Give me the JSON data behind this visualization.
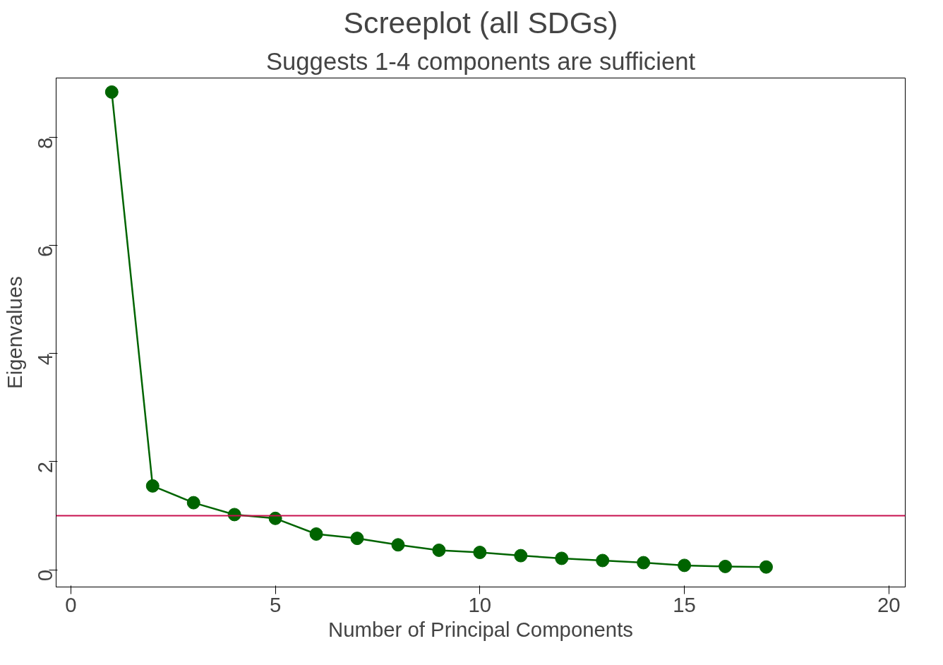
{
  "chart_data": {
    "type": "line",
    "title": "Screeplot (all SDGs)",
    "subtitle": "Suggests 1-4 components are sufficient",
    "xlabel": "Number of Principal Components",
    "ylabel": "Eigenvalues",
    "x": [
      1,
      2,
      3,
      4,
      5,
      6,
      7,
      8,
      9,
      10,
      11,
      12,
      13,
      14,
      15,
      16,
      17
    ],
    "series": [
      {
        "color": "#006400",
        "values": [
          8.84,
          1.55,
          1.24,
          1.02,
          0.95,
          0.66,
          0.58,
          0.46,
          0.36,
          0.32,
          0.26,
          0.21,
          0.17,
          0.13,
          0.08,
          0.06,
          0.05
        ]
      }
    ],
    "xlim": [
      -0.36,
      20.4
    ],
    "ylim": [
      -0.32,
      9.1
    ],
    "xticks": [
      0,
      5,
      10,
      15,
      20
    ],
    "yticks": [
      0,
      2,
      4,
      6,
      8
    ],
    "ref_lines": [
      {
        "axis": "y",
        "value": 1,
        "color": "#c8104e"
      }
    ],
    "marker": "circle",
    "line_style": "solid",
    "grid": false
  }
}
